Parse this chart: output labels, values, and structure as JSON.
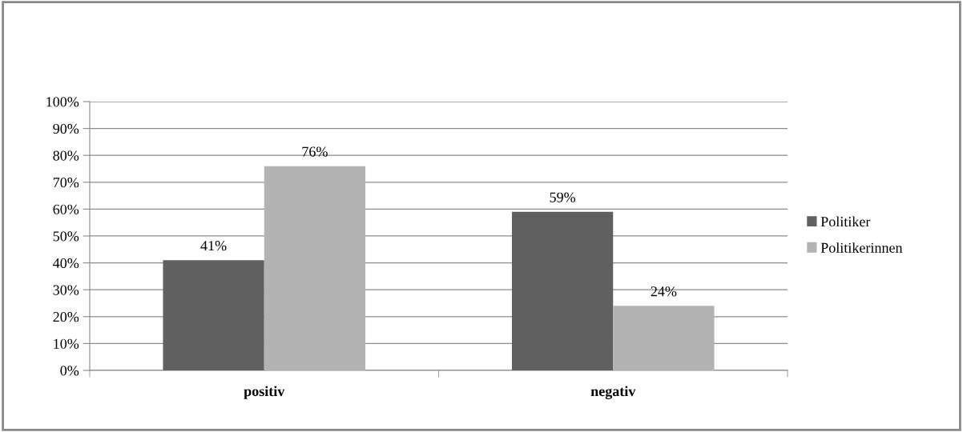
{
  "chart_data": {
    "type": "bar",
    "categories": [
      "positiv",
      "negativ"
    ],
    "series": [
      {
        "name": "Politiker",
        "color": "#606060",
        "values": [
          41,
          59
        ],
        "value_labels": [
          "41%",
          "59%"
        ]
      },
      {
        "name": "Politikerinnen",
        "color": "#b3b3b3",
        "values": [
          76,
          24
        ],
        "value_labels": [
          "76%",
          "24%"
        ]
      }
    ],
    "ylim": [
      0,
      100
    ],
    "yticks": [
      {
        "value": 0,
        "label": "0%"
      },
      {
        "value": 10,
        "label": "10%"
      },
      {
        "value": 20,
        "label": "20%"
      },
      {
        "value": 30,
        "label": "30%"
      },
      {
        "value": 40,
        "label": "40%"
      },
      {
        "value": 50,
        "label": "50%"
      },
      {
        "value": 60,
        "label": "60%"
      },
      {
        "value": 70,
        "label": "70%"
      },
      {
        "value": 80,
        "label": "80%"
      },
      {
        "value": 90,
        "label": "90%"
      },
      {
        "value": 100,
        "label": "100%"
      }
    ],
    "grid": "y",
    "legend": "right"
  }
}
